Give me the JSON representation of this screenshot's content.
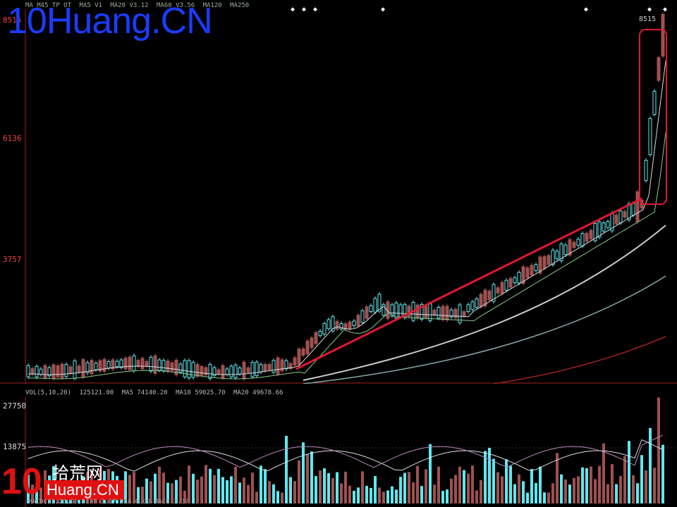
{
  "watermark": "10Huang.CN",
  "price_header": {
    "items": [
      "MA M45 TP OT",
      "MA5 V1",
      "MA20 V3.12",
      "MA60 V3.56",
      "MA120",
      "MA250"
    ]
  },
  "price_axis": [
    "8515",
    "6136",
    "3757"
  ],
  "peak_label": "8515",
  "volume_header": {
    "label": "VOL(5,10,20)",
    "items": [
      "125121.00",
      "MA5 74140.20",
      "MA10 59025.70",
      "MA20 49678.66"
    ]
  },
  "volume_axis": [
    "27750",
    "13875"
  ],
  "footer": "MACD(12,26,9) DIFF 1.17 DEA 0.09 MACD 3.37",
  "logo": {
    "num": "10",
    "cn": "拾荒网",
    "en": "Huang.CN"
  },
  "colors": {
    "up": "#5ee8f0",
    "down": "#a05050",
    "trend": "#e01830",
    "highlight_box": "#e01830"
  },
  "chart_data": {
    "type": "candlestick",
    "trendline": "rising support from ~3300 to ~5600",
    "highlight": "final breakout candles to 8515"
  }
}
